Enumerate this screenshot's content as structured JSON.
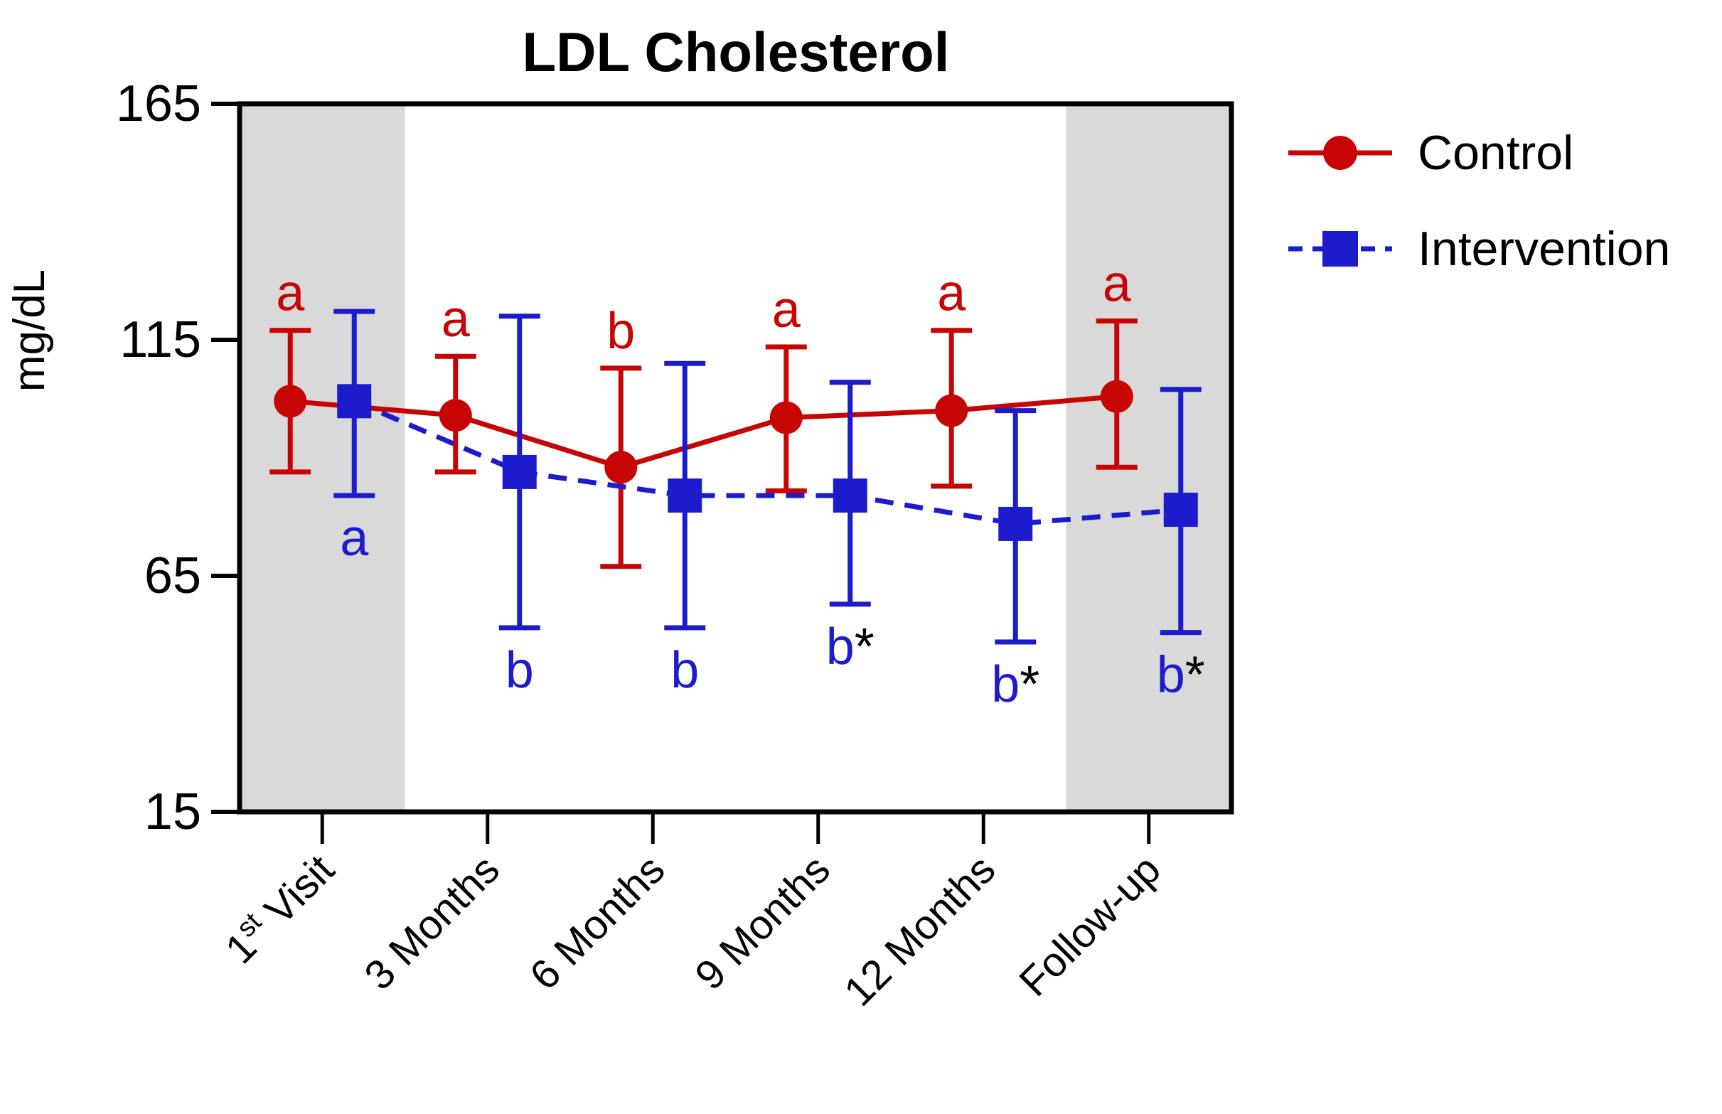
{
  "title": "LDL Cholesterol",
  "y_axis": {
    "label": "mg/dL"
  },
  "chart_data": {
    "type": "line",
    "title": "LDL Cholesterol",
    "xlabel": "",
    "ylabel": "mg/dL",
    "ylim": [
      15,
      165
    ],
    "yticks": [
      165,
      115,
      65,
      15
    ],
    "grid": false,
    "legend_position": "outside-upper-right",
    "categories": [
      "1st Visit",
      "3 Months",
      "6 Months",
      "9 Months",
      "12 Months",
      "Follow-up"
    ],
    "category_label_parts": [
      {
        "main": "1",
        "sup": "st",
        "rest": " Visit"
      },
      {
        "main": "3 Months",
        "sup": "",
        "rest": ""
      },
      {
        "main": "6 Months",
        "sup": "",
        "rest": ""
      },
      {
        "main": "9 Months",
        "sup": "",
        "rest": ""
      },
      {
        "main": "12 Months",
        "sup": "",
        "rest": ""
      },
      {
        "main": "Follow-up",
        "sup": "",
        "rest": ""
      }
    ],
    "shaded_band_categories": [
      "1st Visit",
      "Follow-up"
    ],
    "band_color": "#d9d9d9",
    "frame_color": "#000000",
    "series": [
      {
        "name": "Control",
        "color": "#c80505",
        "marker": "circle",
        "line_style": "solid",
        "values": [
          102,
          99,
          88,
          98.5,
          100,
          103
        ],
        "err_low": [
          87,
          87,
          67,
          83,
          84,
          88
        ],
        "err_high": [
          117,
          111.5,
          109,
          113.5,
          117,
          119
        ],
        "letters": [
          "a",
          "a",
          "b",
          "a",
          "a",
          "a"
        ],
        "letter_position": "above"
      },
      {
        "name": "Intervention",
        "color": "#1c1ccd",
        "marker": "square",
        "line_style": "dashed",
        "values": [
          102,
          87,
          82,
          82,
          76,
          79
        ],
        "err_low": [
          82,
          54,
          54,
          59,
          51,
          53
        ],
        "err_high": [
          121,
          120,
          110,
          106,
          100,
          104.5
        ],
        "letters": [
          "a",
          "b",
          "b",
          "b*",
          "b*",
          "b*"
        ],
        "letter_position": "below"
      }
    ],
    "asterisk_color": "#000000"
  }
}
